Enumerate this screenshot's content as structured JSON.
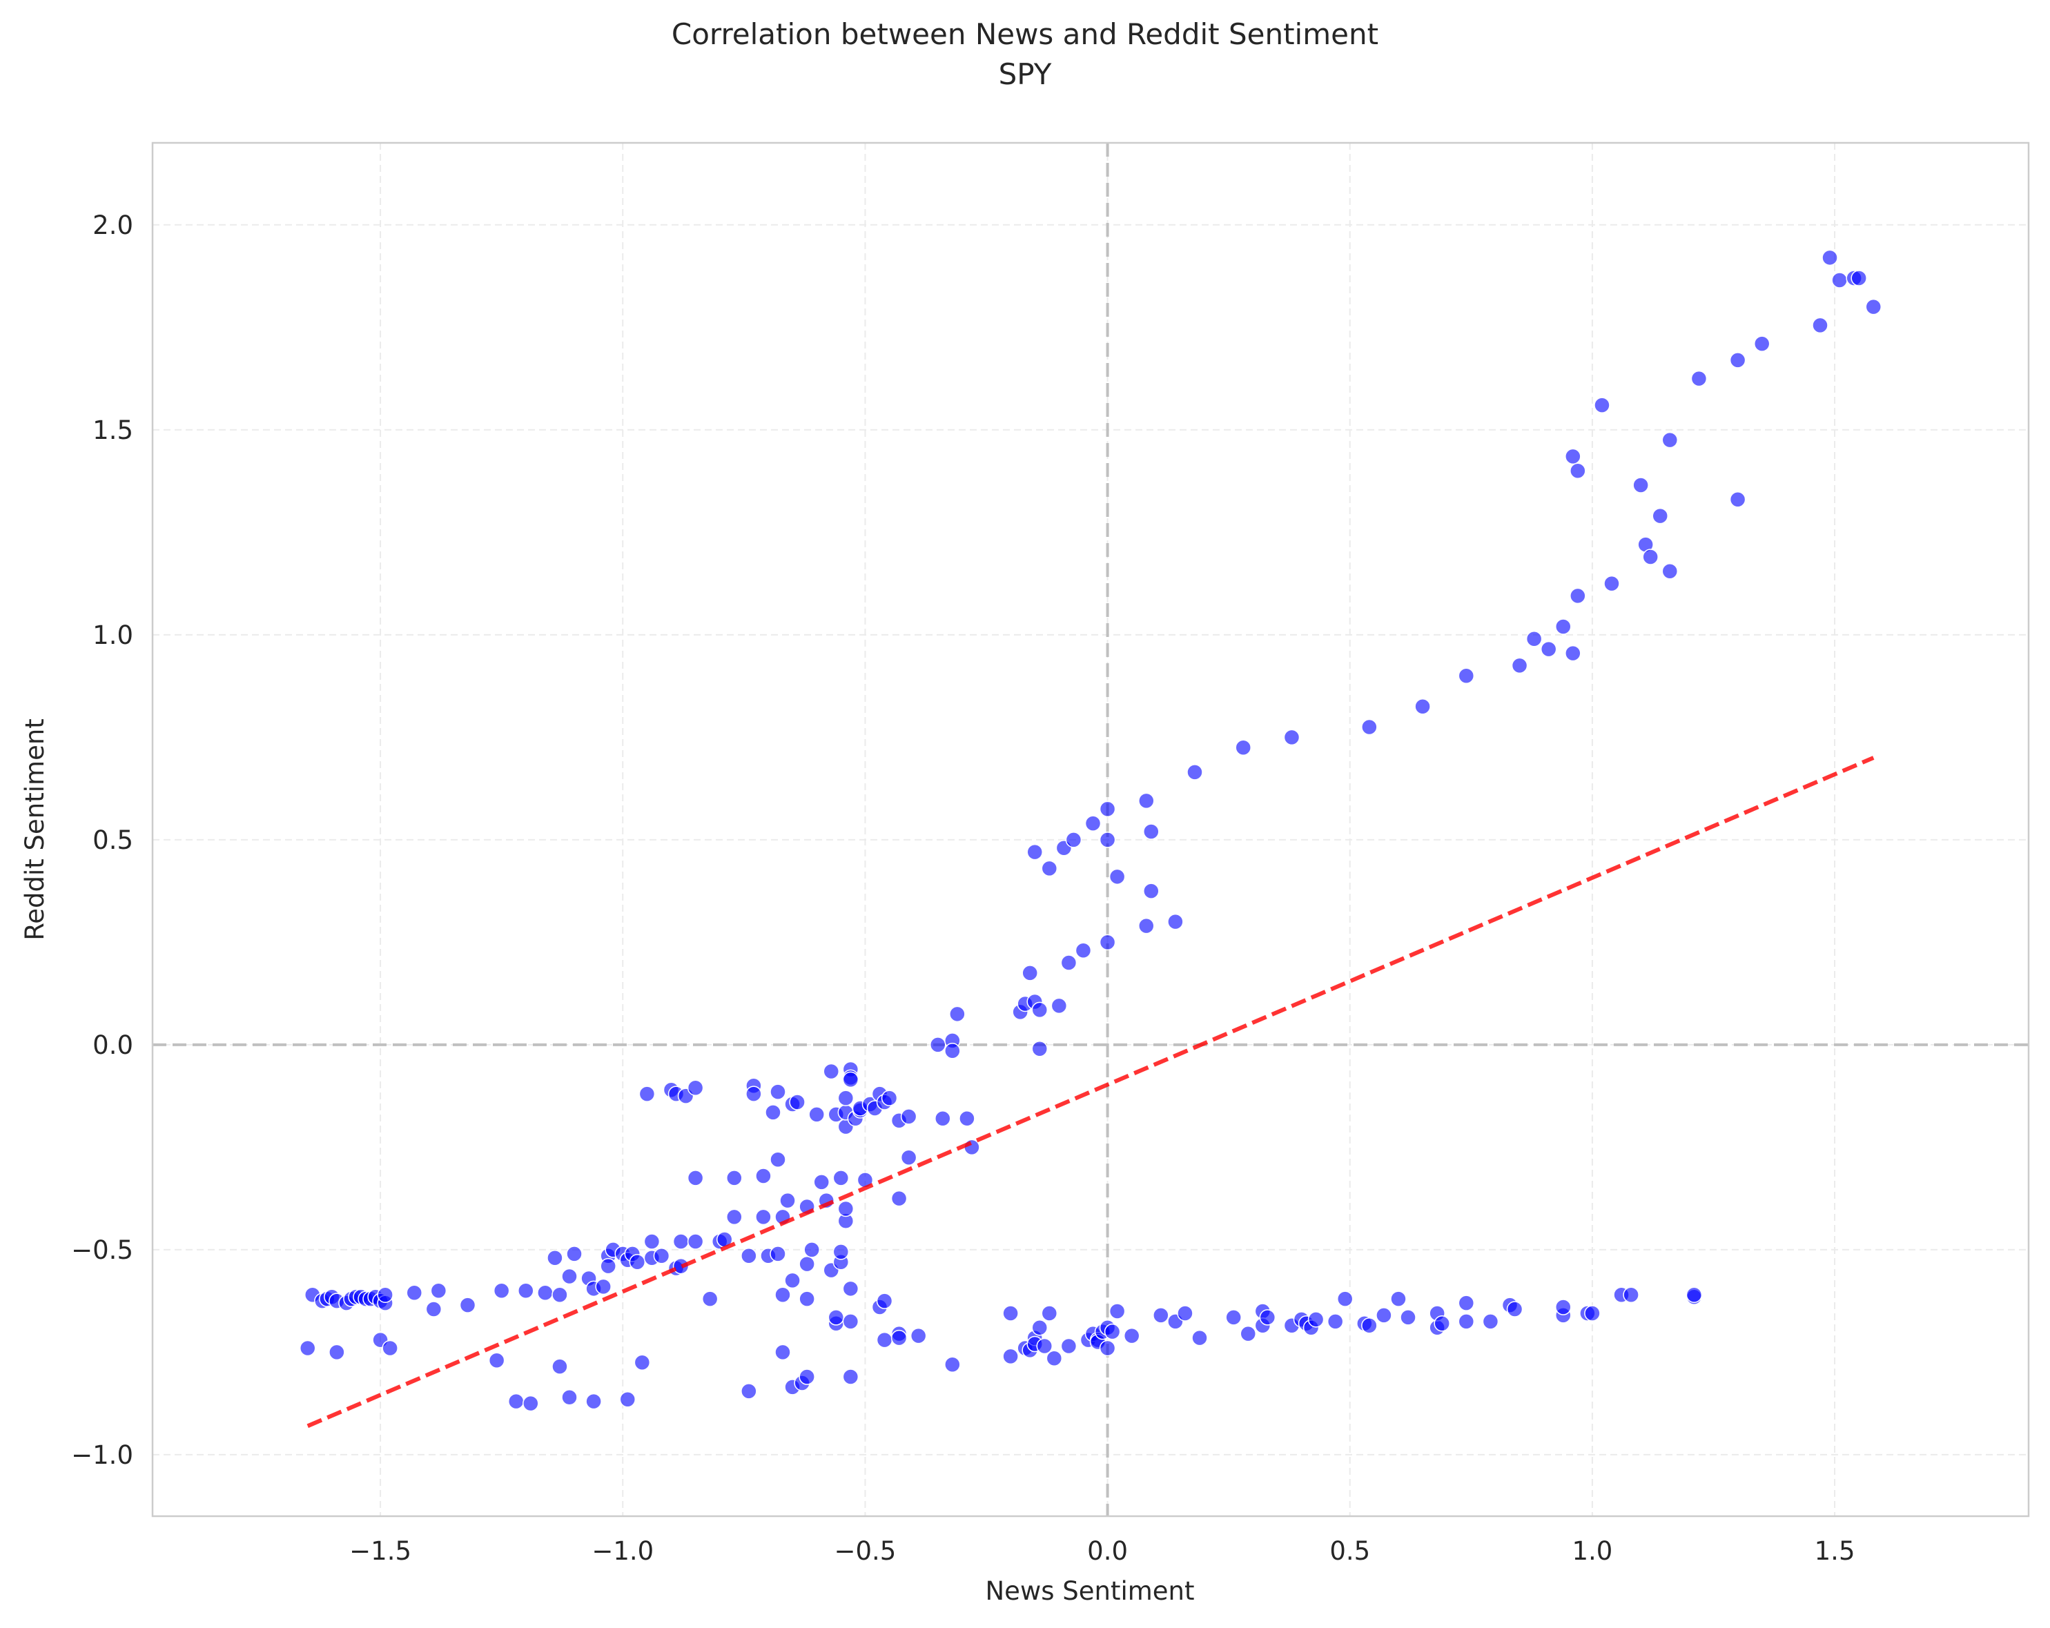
{
  "chart_data": {
    "type": "scatter",
    "title": "Correlation between News and Reddit Sentiment",
    "subtitle": "SPY",
    "xlabel": "News Sentiment",
    "ylabel": "Reddit Sentiment",
    "xlim": [
      -1.97,
      1.9
    ],
    "ylim": [
      -1.15,
      2.2
    ],
    "xticks": [
      -1.5,
      -1.0,
      -0.5,
      0.0,
      0.5,
      1.0,
      1.5
    ],
    "xtick_labels": [
      "−1.5",
      "−1.0",
      "−0.5",
      "0.0",
      "0.5",
      "1.0",
      "1.5"
    ],
    "yticks": [
      -1.0,
      -0.5,
      0.0,
      0.5,
      1.0,
      1.5,
      2.0
    ],
    "ytick_labels": [
      "−1.0",
      "−0.5",
      "0.0",
      "0.5",
      "1.0",
      "1.5",
      "2.0"
    ],
    "grid": true,
    "reference_lines": {
      "x": 0.0,
      "y": 0.0,
      "color": "#c0c0c0",
      "style": "dashed"
    },
    "marker_color": "#0000ff",
    "marker_alpha": 0.6,
    "fit_line": {
      "color": "#ff0000",
      "style": "dashed",
      "x": [
        -1.65,
        1.58
      ],
      "y": [
        -0.93,
        0.7
      ]
    },
    "points": [
      [
        -1.65,
        -0.74
      ],
      [
        -1.64,
        -0.61
      ],
      [
        -1.62,
        -0.625
      ],
      [
        -1.61,
        -0.62
      ],
      [
        -1.6,
        -0.615
      ],
      [
        -1.59,
        -0.625
      ],
      [
        -1.59,
        -0.75
      ],
      [
        -1.57,
        -0.63
      ],
      [
        -1.56,
        -0.62
      ],
      [
        -1.55,
        -0.615
      ],
      [
        -1.54,
        -0.615
      ],
      [
        -1.53,
        -0.62
      ],
      [
        -1.52,
        -0.62
      ],
      [
        -1.51,
        -0.615
      ],
      [
        -1.5,
        -0.625
      ],
      [
        -1.5,
        -0.72
      ],
      [
        -1.49,
        -0.63
      ],
      [
        -1.48,
        -0.74
      ],
      [
        -1.49,
        -0.61
      ],
      [
        -1.43,
        -0.605
      ],
      [
        -1.39,
        -0.645
      ],
      [
        -1.38,
        -0.6
      ],
      [
        -1.32,
        -0.635
      ],
      [
        -1.26,
        -0.77
      ],
      [
        -1.25,
        -0.6
      ],
      [
        -1.22,
        -0.87
      ],
      [
        -1.2,
        -0.6
      ],
      [
        -1.19,
        -0.875
      ],
      [
        -1.16,
        -0.605
      ],
      [
        -1.14,
        -0.52
      ],
      [
        -1.13,
        -0.785
      ],
      [
        -1.13,
        -0.61
      ],
      [
        -1.11,
        -0.86
      ],
      [
        -1.11,
        -0.565
      ],
      [
        -1.1,
        -0.51
      ],
      [
        -1.07,
        -0.57
      ],
      [
        -1.06,
        -0.87
      ],
      [
        -1.06,
        -0.595
      ],
      [
        -1.04,
        -0.59
      ],
      [
        -1.03,
        -0.515
      ],
      [
        -1.03,
        -0.54
      ],
      [
        -1.02,
        -0.5
      ],
      [
        -1.0,
        -0.51
      ],
      [
        -0.99,
        -0.865
      ],
      [
        -0.99,
        -0.525
      ],
      [
        -0.98,
        -0.51
      ],
      [
        -0.97,
        -0.53
      ],
      [
        -0.96,
        -0.775
      ],
      [
        -0.95,
        -0.12
      ],
      [
        -0.94,
        -0.52
      ],
      [
        -0.94,
        -0.48
      ],
      [
        -0.92,
        -0.515
      ],
      [
        -0.9,
        -0.11
      ],
      [
        -0.89,
        -0.545
      ],
      [
        -0.89,
        -0.12
      ],
      [
        -0.87,
        -0.125
      ],
      [
        -0.85,
        -0.105
      ],
      [
        -0.85,
        -0.325
      ],
      [
        -0.88,
        -0.54
      ],
      [
        -0.88,
        -0.48
      ],
      [
        -0.85,
        -0.48
      ],
      [
        -0.82,
        -0.62
      ],
      [
        -0.8,
        -0.48
      ],
      [
        -0.79,
        -0.475
      ],
      [
        -0.77,
        -0.42
      ],
      [
        -0.77,
        -0.325
      ],
      [
        -0.74,
        -0.515
      ],
      [
        -0.74,
        -0.845
      ],
      [
        -0.73,
        -0.1
      ],
      [
        -0.73,
        -0.12
      ],
      [
        -0.71,
        -0.42
      ],
      [
        -0.71,
        -0.32
      ],
      [
        -0.7,
        -0.515
      ],
      [
        -0.69,
        -0.165
      ],
      [
        -0.68,
        -0.28
      ],
      [
        -0.68,
        -0.51
      ],
      [
        -0.68,
        -0.115
      ],
      [
        -0.67,
        -0.42
      ],
      [
        -0.67,
        -0.61
      ],
      [
        -0.67,
        -0.75
      ],
      [
        -0.66,
        -0.38
      ],
      [
        -0.65,
        -0.145
      ],
      [
        -0.65,
        -0.835
      ],
      [
        -0.65,
        -0.575
      ],
      [
        -0.64,
        -0.14
      ],
      [
        -0.63,
        -0.825
      ],
      [
        -0.62,
        -0.535
      ],
      [
        -0.62,
        -0.395
      ],
      [
        -0.62,
        -0.81
      ],
      [
        -0.62,
        -0.62
      ],
      [
        -0.61,
        -0.5
      ],
      [
        -0.6,
        -0.17
      ],
      [
        -0.59,
        -0.335
      ],
      [
        -0.58,
        -0.38
      ],
      [
        -0.57,
        -0.065
      ],
      [
        -0.57,
        -0.55
      ],
      [
        -0.56,
        -0.17
      ],
      [
        -0.56,
        -0.68
      ],
      [
        -0.56,
        -0.665
      ],
      [
        -0.55,
        -0.325
      ],
      [
        -0.55,
        -0.53
      ],
      [
        -0.55,
        -0.505
      ],
      [
        -0.54,
        -0.2
      ],
      [
        -0.54,
        -0.165
      ],
      [
        -0.54,
        -0.13
      ],
      [
        -0.54,
        -0.43
      ],
      [
        -0.54,
        -0.4
      ],
      [
        -0.53,
        -0.06
      ],
      [
        -0.53,
        -0.08
      ],
      [
        -0.53,
        -0.085
      ],
      [
        -0.53,
        -0.595
      ],
      [
        -0.53,
        -0.81
      ],
      [
        -0.53,
        -0.675
      ],
      [
        -0.52,
        -0.18
      ],
      [
        -0.51,
        -0.16
      ],
      [
        -0.51,
        -0.155
      ],
      [
        -0.5,
        -0.33
      ],
      [
        -0.49,
        -0.145
      ],
      [
        -0.48,
        -0.155
      ],
      [
        -0.47,
        -0.12
      ],
      [
        -0.47,
        -0.64
      ],
      [
        -0.46,
        -0.14
      ],
      [
        -0.46,
        -0.72
      ],
      [
        -0.46,
        -0.625
      ],
      [
        -0.45,
        -0.13
      ],
      [
        -0.43,
        -0.375
      ],
      [
        -0.43,
        -0.185
      ],
      [
        -0.43,
        -0.705
      ],
      [
        -0.43,
        -0.715
      ],
      [
        -0.41,
        -0.275
      ],
      [
        -0.41,
        -0.175
      ],
      [
        -0.39,
        -0.71
      ],
      [
        -0.35,
        0.0
      ],
      [
        -0.34,
        -0.18
      ],
      [
        -0.32,
        -0.78
      ],
      [
        -0.32,
        0.01
      ],
      [
        -0.32,
        -0.015
      ],
      [
        -0.31,
        0.075
      ],
      [
        -0.29,
        -0.18
      ],
      [
        -0.28,
        -0.25
      ],
      [
        -0.2,
        -0.655
      ],
      [
        -0.2,
        -0.76
      ],
      [
        -0.18,
        0.08
      ],
      [
        -0.17,
        0.1
      ],
      [
        -0.17,
        -0.74
      ],
      [
        -0.16,
        -0.745
      ],
      [
        -0.16,
        0.175
      ],
      [
        -0.15,
        0.47
      ],
      [
        -0.15,
        -0.715
      ],
      [
        -0.15,
        -0.73
      ],
      [
        -0.15,
        0.105
      ],
      [
        -0.14,
        0.085
      ],
      [
        -0.14,
        -0.01
      ],
      [
        -0.14,
        -0.69
      ],
      [
        -0.13,
        -0.735
      ],
      [
        -0.12,
        0.43
      ],
      [
        -0.12,
        -0.655
      ],
      [
        -0.11,
        -0.765
      ],
      [
        -0.1,
        0.095
      ],
      [
        -0.09,
        0.48
      ],
      [
        -0.08,
        0.2
      ],
      [
        -0.08,
        -0.735
      ],
      [
        -0.07,
        0.5
      ],
      [
        -0.05,
        0.23
      ],
      [
        -0.04,
        -0.72
      ],
      [
        -0.03,
        0.54
      ],
      [
        -0.03,
        -0.705
      ],
      [
        -0.02,
        -0.72
      ],
      [
        -0.02,
        -0.725
      ],
      [
        -0.01,
        -0.7
      ],
      [
        0.0,
        0.575
      ],
      [
        0.0,
        0.25
      ],
      [
        0.0,
        -0.69
      ],
      [
        0.0,
        0.5
      ],
      [
        0.0,
        -0.74
      ],
      [
        0.01,
        -0.7
      ],
      [
        0.02,
        -0.65
      ],
      [
        0.02,
        0.41
      ],
      [
        0.05,
        -0.71
      ],
      [
        0.08,
        0.595
      ],
      [
        0.08,
        0.29
      ],
      [
        0.09,
        0.375
      ],
      [
        0.09,
        0.52
      ],
      [
        0.11,
        -0.66
      ],
      [
        0.14,
        0.3
      ],
      [
        0.14,
        -0.675
      ],
      [
        0.16,
        -0.655
      ],
      [
        0.18,
        0.665
      ],
      [
        0.19,
        -0.715
      ],
      [
        0.26,
        -0.665
      ],
      [
        0.28,
        0.725
      ],
      [
        0.29,
        -0.705
      ],
      [
        0.32,
        -0.65
      ],
      [
        0.32,
        -0.685
      ],
      [
        0.33,
        -0.665
      ],
      [
        0.38,
        -0.685
      ],
      [
        0.38,
        0.75
      ],
      [
        0.4,
        -0.67
      ],
      [
        0.41,
        -0.68
      ],
      [
        0.42,
        -0.69
      ],
      [
        0.43,
        -0.67
      ],
      [
        0.47,
        -0.675
      ],
      [
        0.49,
        -0.62
      ],
      [
        0.53,
        -0.68
      ],
      [
        0.54,
        -0.685
      ],
      [
        0.54,
        0.775
      ],
      [
        0.57,
        -0.66
      ],
      [
        0.6,
        -0.62
      ],
      [
        0.62,
        -0.665
      ],
      [
        0.65,
        0.825
      ],
      [
        0.68,
        -0.69
      ],
      [
        0.68,
        -0.655
      ],
      [
        0.69,
        -0.68
      ],
      [
        0.74,
        -0.63
      ],
      [
        0.74,
        0.9
      ],
      [
        0.74,
        -0.675
      ],
      [
        0.79,
        -0.675
      ],
      [
        0.83,
        -0.635
      ],
      [
        0.84,
        -0.645
      ],
      [
        0.85,
        0.925
      ],
      [
        0.88,
        0.99
      ],
      [
        0.91,
        0.965
      ],
      [
        0.94,
        -0.66
      ],
      [
        0.94,
        -0.64
      ],
      [
        0.94,
        1.02
      ],
      [
        0.96,
        1.435
      ],
      [
        0.96,
        0.955
      ],
      [
        0.97,
        1.095
      ],
      [
        0.97,
        1.4
      ],
      [
        0.99,
        -0.655
      ],
      [
        1.0,
        -0.655
      ],
      [
        1.02,
        1.56
      ],
      [
        1.04,
        1.125
      ],
      [
        1.06,
        -0.61
      ],
      [
        1.08,
        -0.61
      ],
      [
        1.1,
        1.365
      ],
      [
        1.11,
        1.22
      ],
      [
        1.12,
        1.19
      ],
      [
        1.14,
        1.29
      ],
      [
        1.16,
        1.155
      ],
      [
        1.16,
        1.475
      ],
      [
        1.21,
        -0.615
      ],
      [
        1.21,
        -0.61
      ],
      [
        1.22,
        1.625
      ],
      [
        1.3,
        1.33
      ],
      [
        1.3,
        1.67
      ],
      [
        1.35,
        1.71
      ],
      [
        1.47,
        1.755
      ],
      [
        1.49,
        1.92
      ],
      [
        1.51,
        1.865
      ],
      [
        1.54,
        1.87
      ],
      [
        1.55,
        1.87
      ],
      [
        1.58,
        1.8
      ]
    ]
  }
}
